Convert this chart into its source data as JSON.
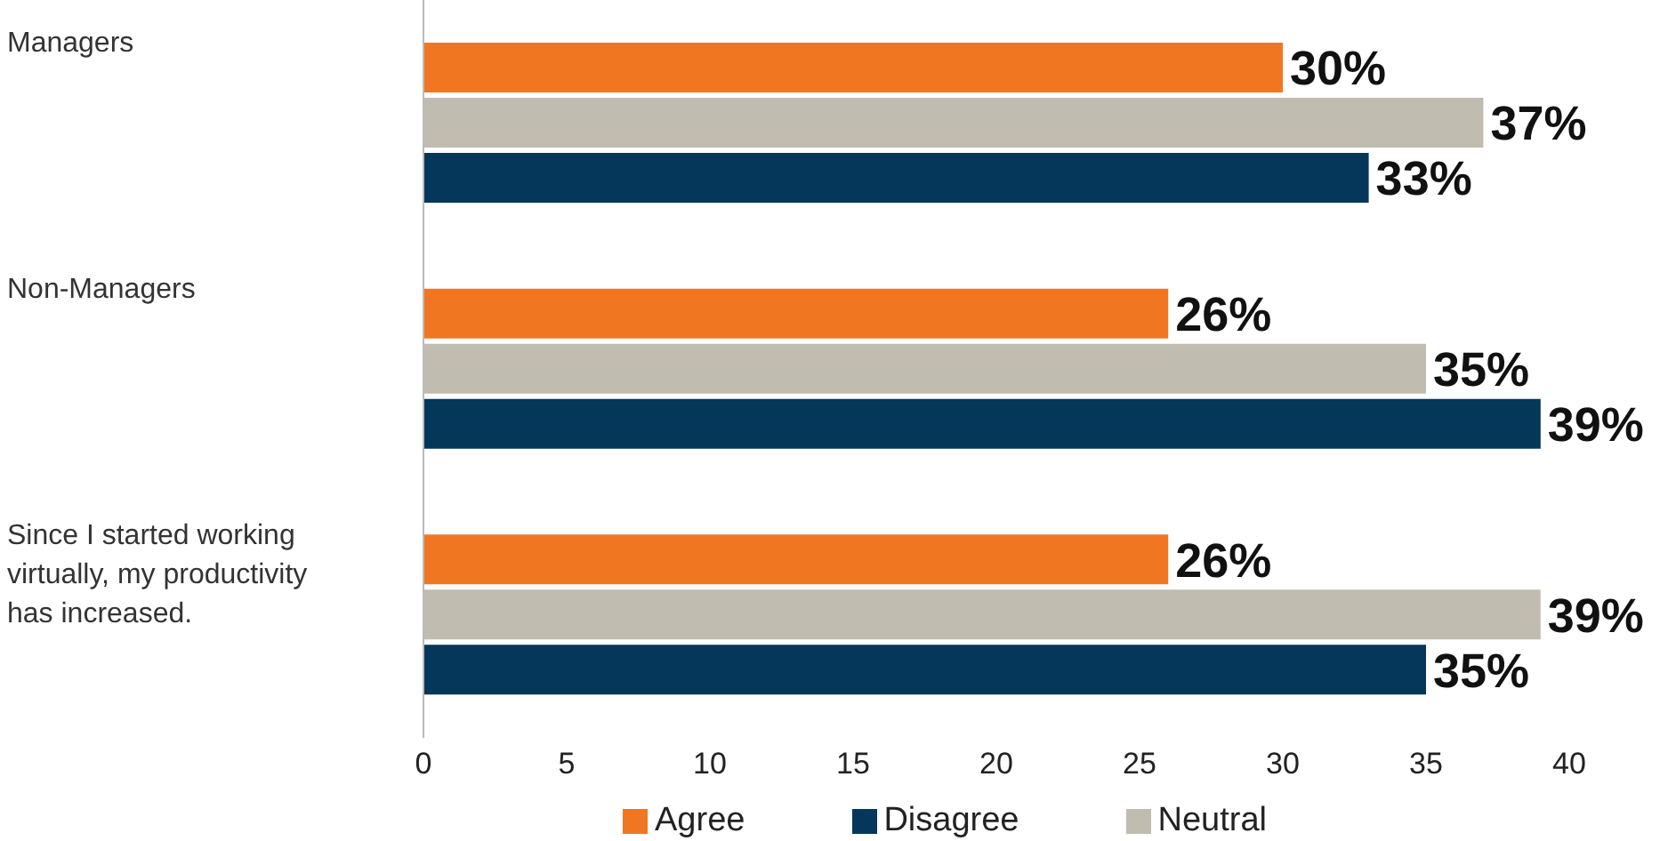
{
  "chart_data": {
    "type": "bar",
    "orientation": "horizontal",
    "categories": [
      "Managers",
      "Non-Managers",
      "Since I started working virtually, my productivity has increased."
    ],
    "series": [
      {
        "name": "Agree",
        "color": "#f07622",
        "values": [
          30,
          26,
          26
        ],
        "value_labels": [
          "30%",
          "26%",
          "26%"
        ]
      },
      {
        "name": "Neutral",
        "color": "#c0bcb0",
        "values": [
          37,
          35,
          39
        ],
        "value_labels": [
          "37%",
          "35%",
          "39%"
        ]
      },
      {
        "name": "Disagree",
        "color": "#04375a",
        "values": [
          33,
          39,
          35
        ],
        "value_labels": [
          "33%",
          "39%",
          "35%"
        ]
      }
    ],
    "xlim": [
      0,
      40
    ],
    "xticks": [
      0,
      5,
      10,
      15,
      20,
      25,
      30,
      35,
      40
    ],
    "grid": false,
    "legend": "bottom"
  }
}
